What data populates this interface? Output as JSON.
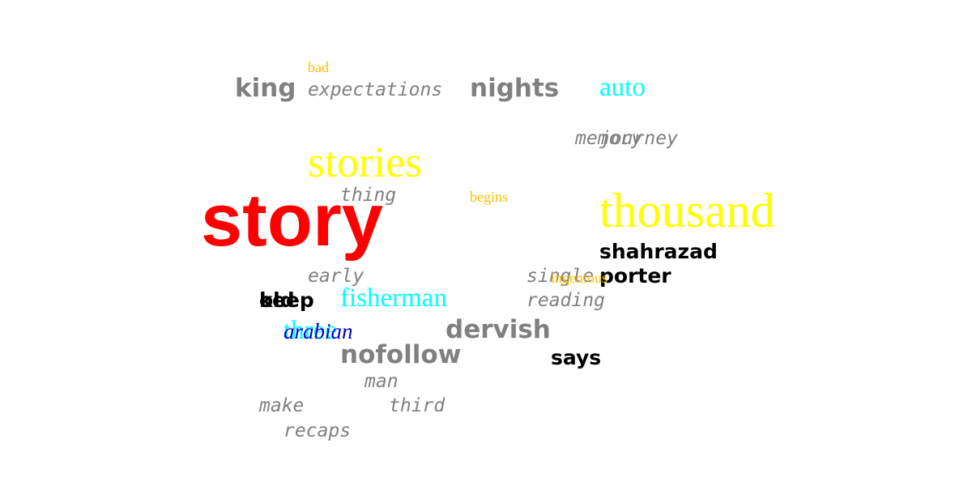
{
  "words": [
    {
      "id": "story",
      "text": "story",
      "color": "#ff0000"
    },
    {
      "id": "thousand",
      "text": "thousand",
      "color": "#ffff00"
    },
    {
      "id": "stories",
      "text": "stories",
      "color": "#ffff00"
    },
    {
      "id": "nights",
      "text": "nights",
      "color": "#808080"
    },
    {
      "id": "king",
      "text": "king",
      "color": "#808080"
    },
    {
      "id": "auto",
      "text": "auto",
      "color": "#00ffff"
    },
    {
      "id": "bad",
      "text": "bad",
      "color": "#ffc000"
    },
    {
      "id": "expectations",
      "text": "expectations",
      "color": "#808080"
    },
    {
      "id": "memory",
      "text": "memory",
      "color": "#808080"
    },
    {
      "id": "journey",
      "text": "journey",
      "color": "#808080"
    },
    {
      "id": "thing",
      "text": "thing",
      "color": "#808080"
    },
    {
      "id": "begins",
      "text": "begins",
      "color": "#ffc000"
    },
    {
      "id": "shahrazad",
      "text": "shahrazad",
      "color": "#000000"
    },
    {
      "id": "porter",
      "text": "porter",
      "color": "#000000"
    },
    {
      "id": "single",
      "text": "single",
      "color": "#808080"
    },
    {
      "id": "ingenious",
      "text": "ingenious",
      "color": "#ffc000"
    },
    {
      "id": "early",
      "text": "early",
      "color": "#808080"
    },
    {
      "id": "fisherman",
      "text": "fisherman",
      "color": "#00ffff"
    },
    {
      "id": "reading",
      "text": "reading",
      "color": "#808080"
    },
    {
      "id": "old",
      "text": "old",
      "color": "#000000"
    },
    {
      "id": "keep",
      "text": "keep",
      "color": "#000000"
    },
    {
      "id": "three",
      "text": "three",
      "color": "#00ffff"
    },
    {
      "id": "arabian",
      "text": "arabian",
      "color": "#0000cc"
    },
    {
      "id": "dervish",
      "text": "dervish",
      "color": "#808080"
    },
    {
      "id": "nofollow",
      "text": "nofollow",
      "color": "#808080"
    },
    {
      "id": "says",
      "text": "says",
      "color": "#000000"
    },
    {
      "id": "man",
      "text": "man",
      "color": "#808080"
    },
    {
      "id": "make",
      "text": "make",
      "color": "#808080"
    },
    {
      "id": "third",
      "text": "third",
      "color": "#808080"
    },
    {
      "id": "recaps",
      "text": "recaps",
      "color": "#808080"
    }
  ]
}
